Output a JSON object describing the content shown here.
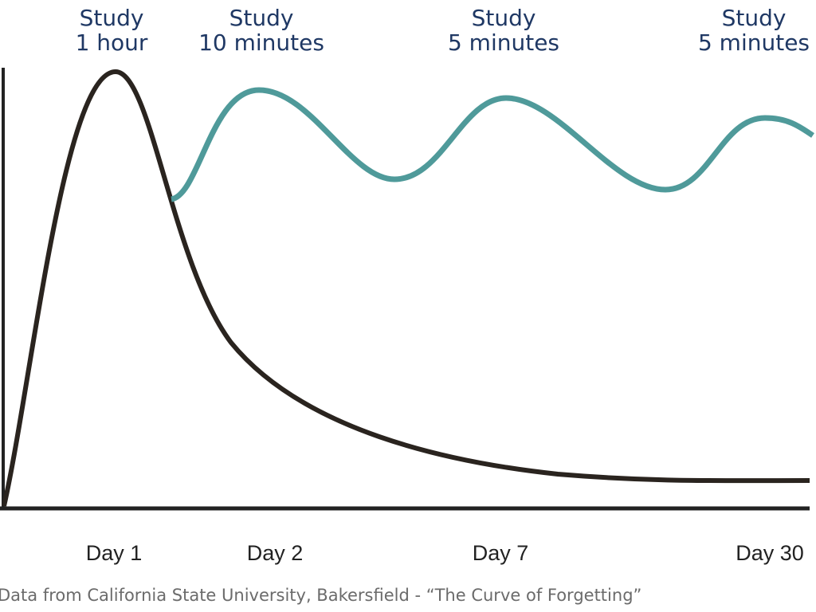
{
  "study_labels": [
    {
      "line1": "Study",
      "line2": "1 hour"
    },
    {
      "line1": "Study",
      "line2": "10 minutes"
    },
    {
      "line1": "Study",
      "line2": "5 minutes"
    },
    {
      "line1": "Study",
      "line2": "5 minutes"
    }
  ],
  "day_labels": [
    "Day 1",
    "Day 2",
    "Day 7",
    "Day 30"
  ],
  "caption": "Data from California State University, Bakersfield - “The Curve of Forgetting”"
}
